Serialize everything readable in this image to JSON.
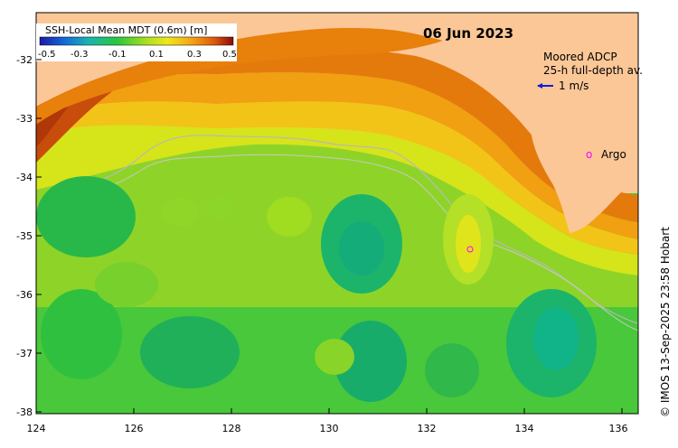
{
  "map": {
    "date": "06 Jun 2023",
    "colorbar": {
      "title": "SSH-Local Mean MDT (0.6m) [m]",
      "ticks": [
        "-0.5",
        "-0.3",
        "-0.1",
        "0.1",
        "0.3",
        "0.5"
      ]
    },
    "x_ticks": [
      "124",
      "126",
      "128",
      "130",
      "132",
      "134",
      "136"
    ],
    "y_ticks": [
      "-32",
      "-33",
      "-34",
      "-35",
      "-36",
      "-37",
      "-38"
    ],
    "legend": {
      "adcp_line1": "Moored ADCP",
      "adcp_line2": "25-h full-depth av.",
      "scale_label": "1 m/s",
      "argo_marker": "o",
      "argo_label": "Argo"
    },
    "credit": "© IMOS 13-Sep-2025 23:58 Hobart",
    "colors": {
      "land": "#fbc797",
      "deep_orange": "#c8460a",
      "orange": "#f08a10",
      "yellow": "#e8e81a",
      "green": "#3fc83a",
      "teal": "#10b87a",
      "vector": "#0a1fd8",
      "argo": "#ff00ff"
    }
  }
}
